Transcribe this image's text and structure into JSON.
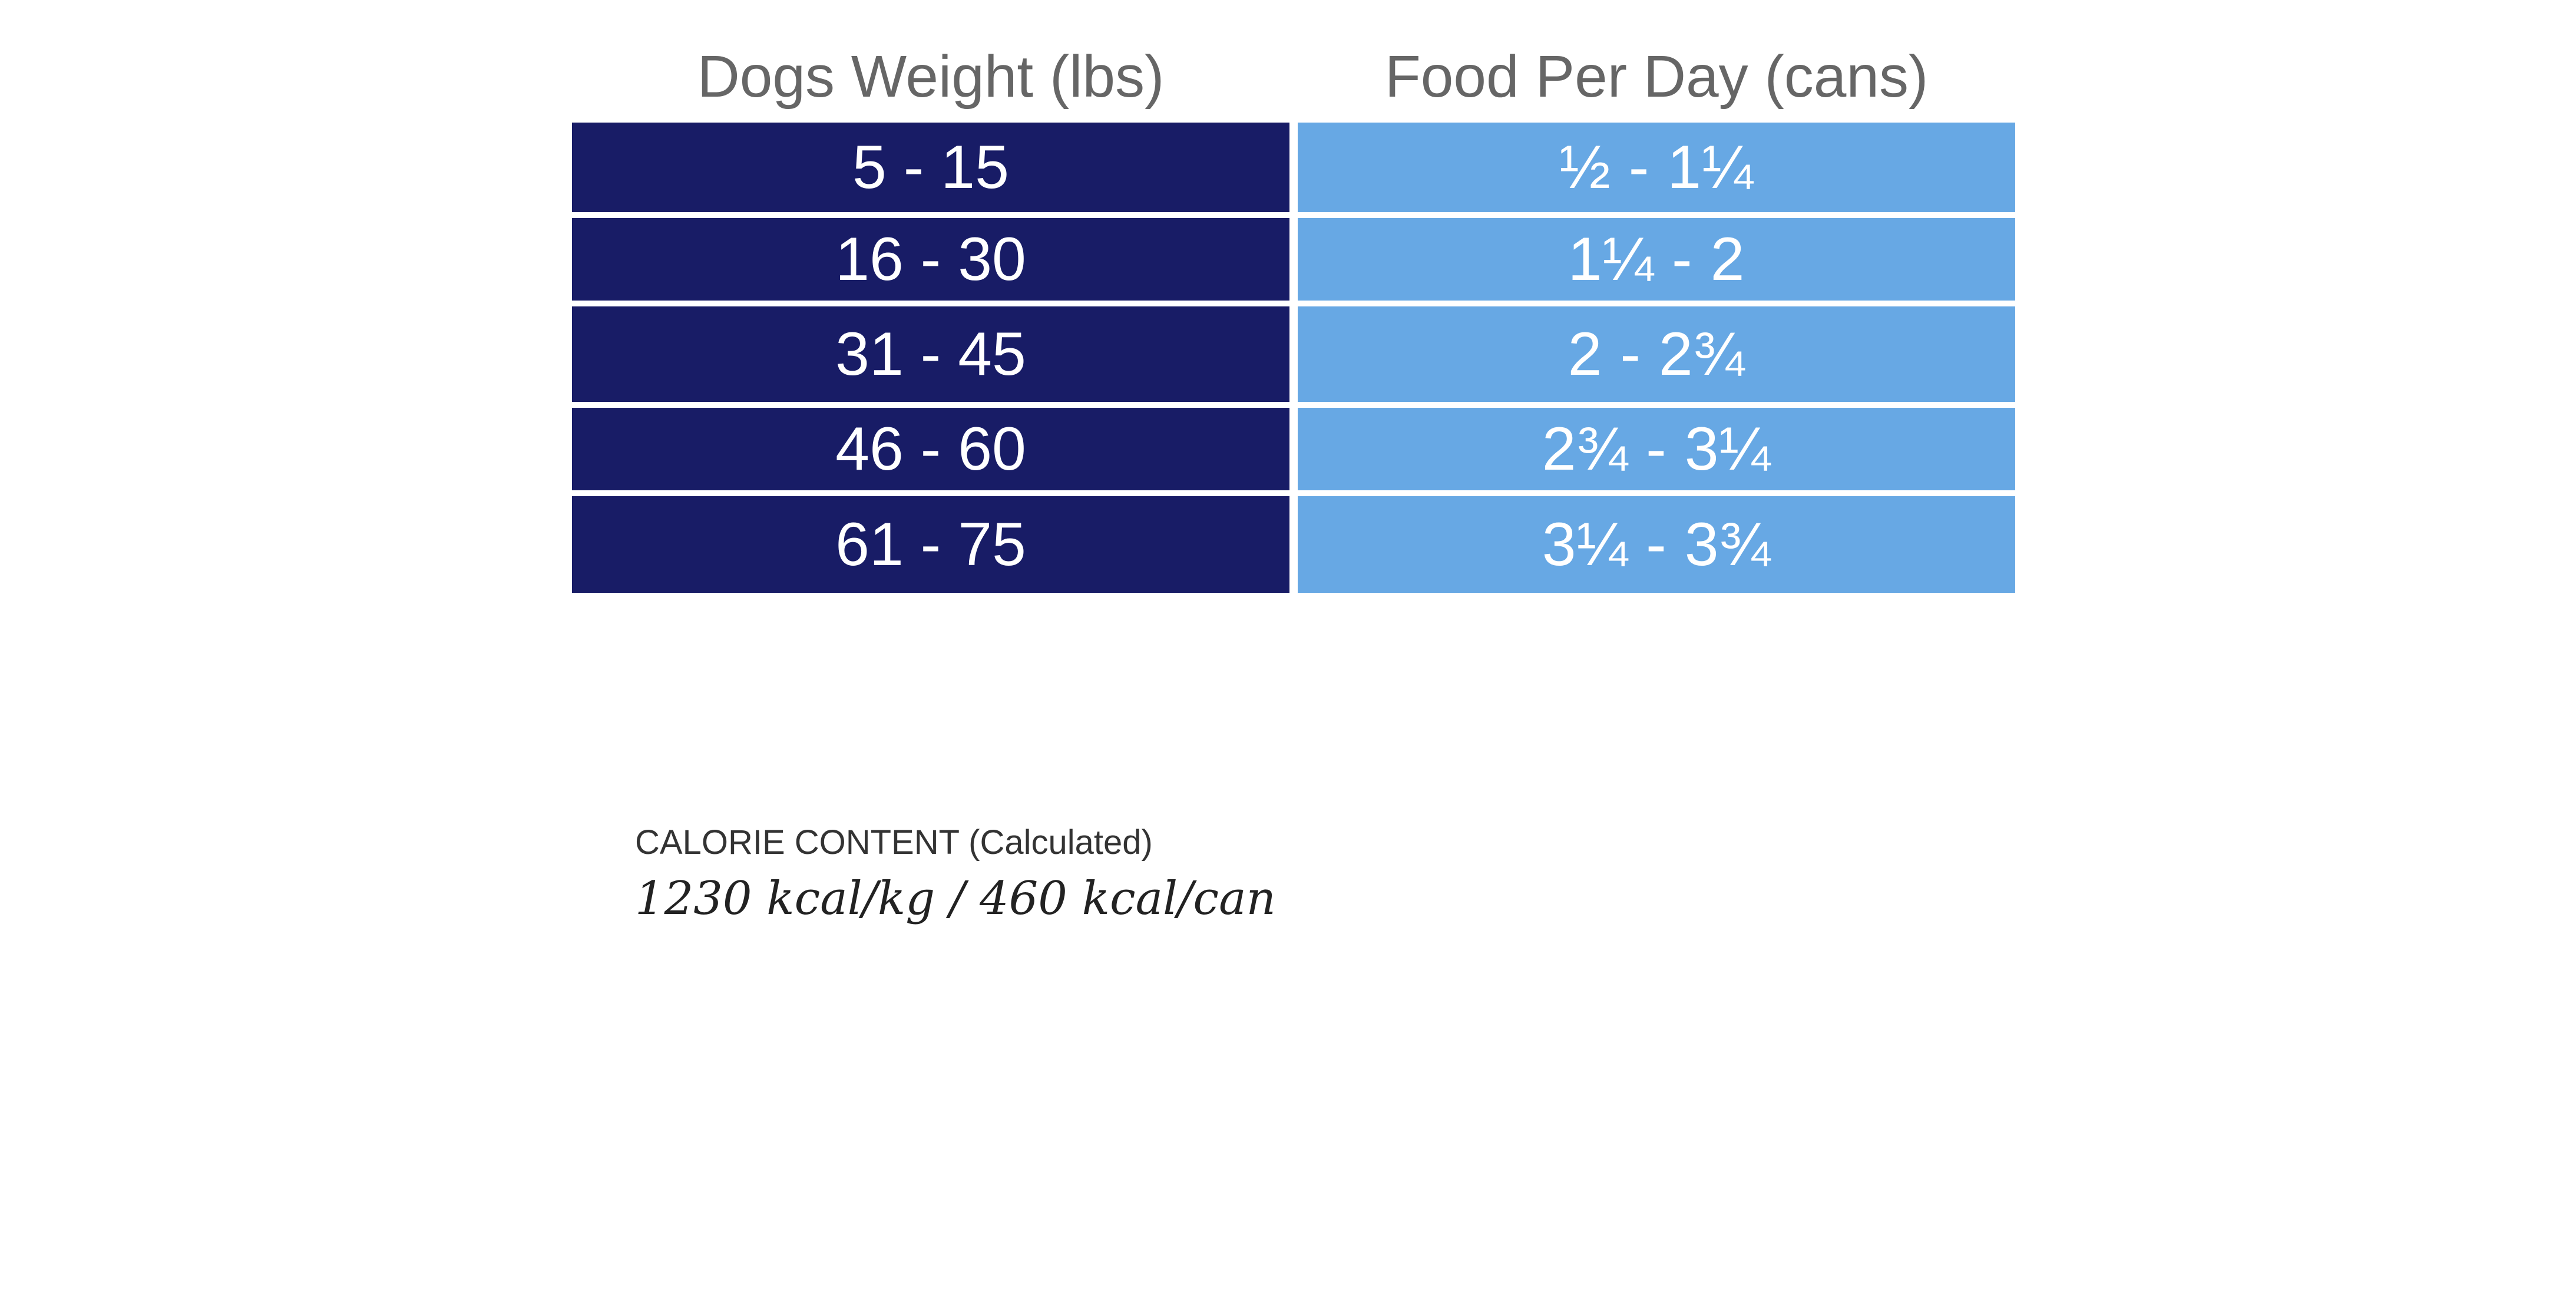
{
  "table": {
    "headers": {
      "weight": "Dogs Weight (lbs)",
      "food": "Food Per Day (cans)"
    },
    "rows": [
      {
        "weight": "5 - 15",
        "food": "½ - 1¼"
      },
      {
        "weight": "16 - 30",
        "food": "1¼ - 2"
      },
      {
        "weight": "31 - 45",
        "food": "2 - 2¾"
      },
      {
        "weight": "46 - 60",
        "food": "2¾ - 3¼"
      },
      {
        "weight": "61 - 75",
        "food": "3¼ - 3¾"
      }
    ]
  },
  "calorie": {
    "label": "CALORIE CONTENT (Calculated)",
    "value": "1230 kcal/kg / 460 kcal/can"
  },
  "colors": {
    "weight_column": "#181c66",
    "food_column": "#67a8e4",
    "header_text": "#666666"
  }
}
